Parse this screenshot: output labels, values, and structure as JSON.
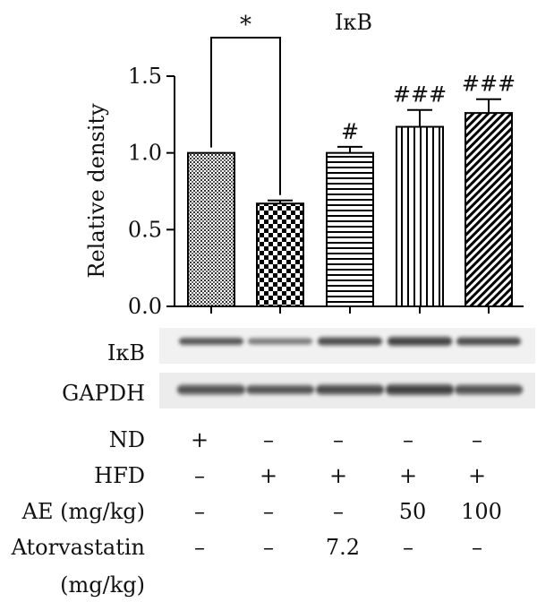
{
  "chart_data": {
    "type": "bar",
    "title": "IκB",
    "ylabel": "Relative density",
    "ylim": [
      0,
      1.5
    ],
    "yticks": [
      "0.0",
      "0.5",
      "1.0",
      "1.5"
    ],
    "categories": [
      "ND",
      "HFD",
      "Atorvastatin 7.2",
      "AE 50",
      "AE 100"
    ],
    "values": [
      1.0,
      0.67,
      1.0,
      1.17,
      1.26
    ],
    "errors": [
      0,
      0.02,
      0.04,
      0.11,
      0.09
    ],
    "bar_patterns": [
      "fine-crosshatch",
      "checkerboard",
      "horizontal-stripes",
      "vertical-stripes",
      "diagonal-stripes"
    ],
    "significance": [
      "",
      "",
      "#",
      "###",
      "###"
    ],
    "bracket": {
      "from": 0,
      "to": 1,
      "label": "*"
    },
    "grid": false
  },
  "blot": {
    "rows": [
      "IκB",
      "GAPDH"
    ]
  },
  "conditions": {
    "rows": [
      {
        "label": "ND",
        "values": [
          "+",
          "–",
          "–",
          "–",
          "–"
        ]
      },
      {
        "label": "HFD",
        "values": [
          "–",
          "+",
          "+",
          "+",
          "+"
        ]
      },
      {
        "label": "AE (mg/kg)",
        "values": [
          "–",
          "–",
          "–",
          "50",
          "100"
        ]
      },
      {
        "label": "Atorvastatin",
        "values": [
          "–",
          "–",
          "7.2",
          "–",
          "–"
        ]
      }
    ],
    "extra_label": "(mg/kg)"
  }
}
